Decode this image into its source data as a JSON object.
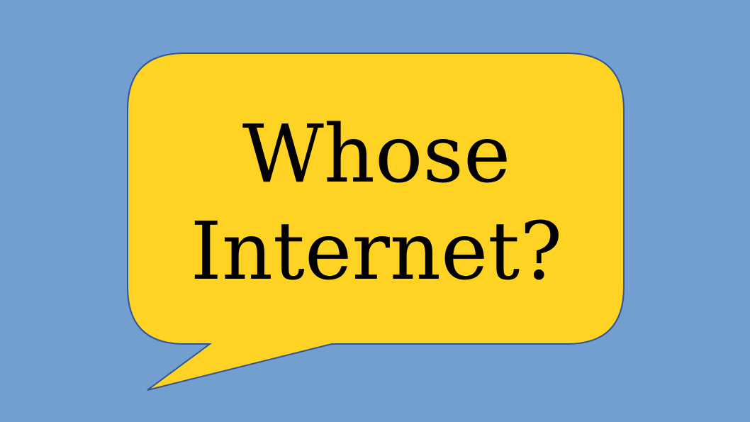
{
  "slide": {
    "background_color": "#729fcf",
    "speech_bubble": {
      "fill_color": "#ffd324",
      "stroke_color": "#2f5597",
      "text_lines": [
        "Whose",
        "Internet?"
      ]
    }
  }
}
